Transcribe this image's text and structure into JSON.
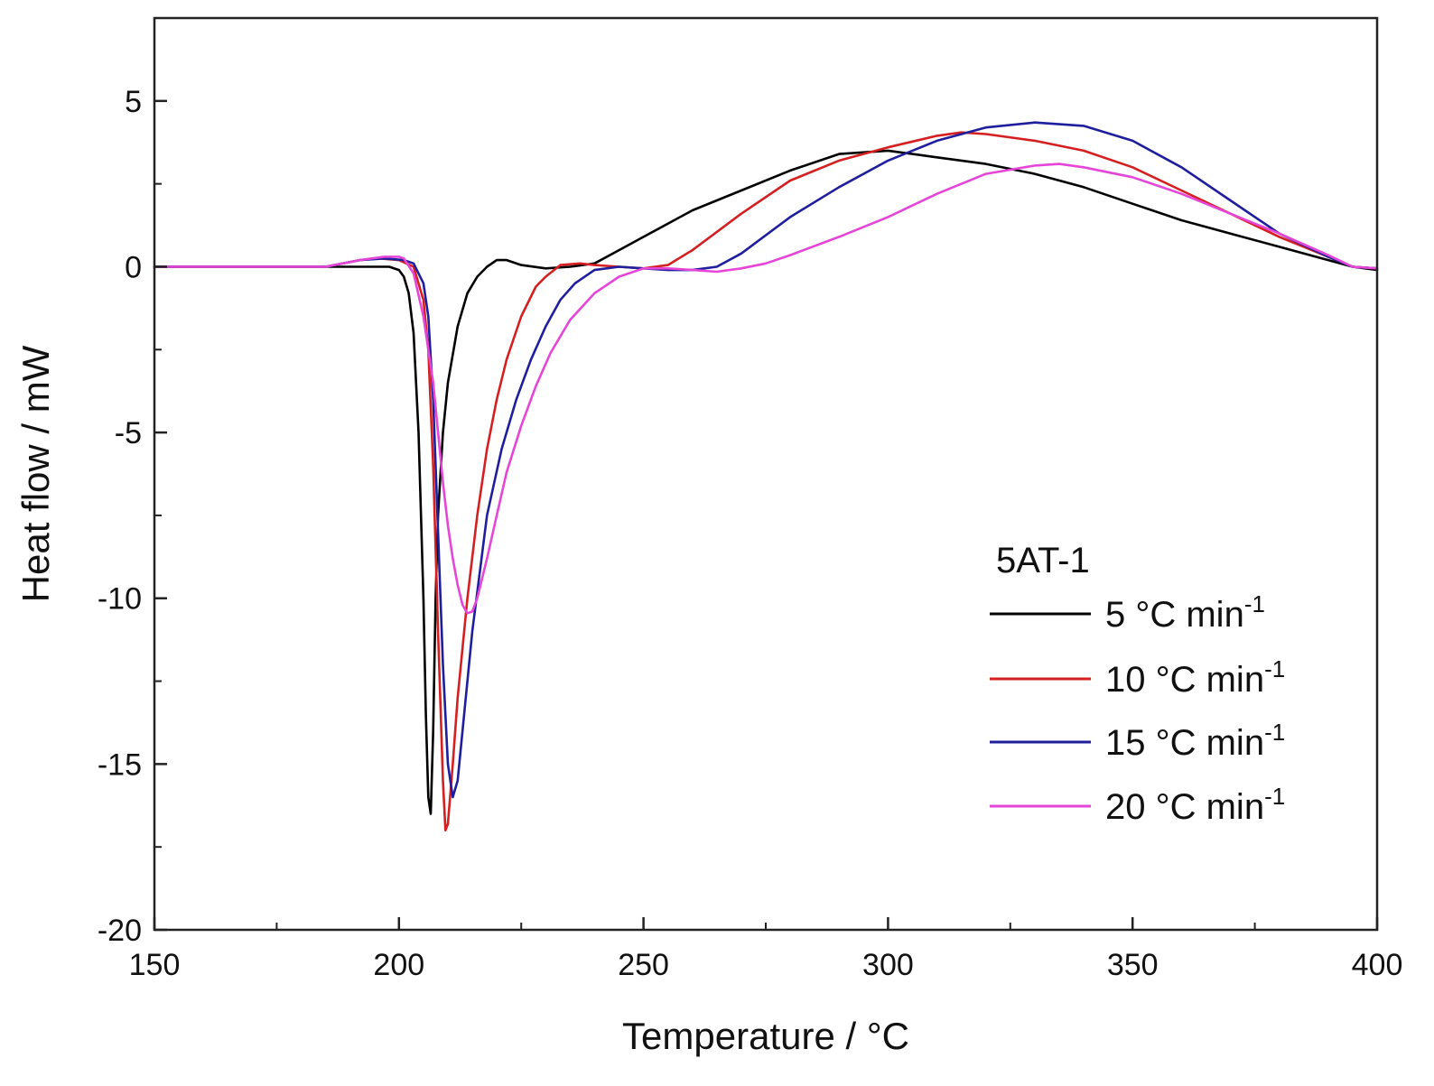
{
  "chart_data": {
    "type": "line",
    "title": "",
    "xlabel": "Temperature / °C",
    "ylabel": "Heat flow / mW",
    "xlim": [
      150,
      400
    ],
    "ylim": [
      -20,
      7.5
    ],
    "xticks": [
      150,
      200,
      250,
      300,
      350,
      400
    ],
    "yticks": [
      -20,
      -15,
      -10,
      -5,
      0,
      5
    ],
    "grid": false,
    "legend": {
      "title": "5AT-1",
      "position": "lower-right"
    },
    "series": [
      {
        "name": "5 °C min-1",
        "rate": "5",
        "unit": "°C min",
        "exp": "-1",
        "color": "#000000",
        "x": [
          150,
          180,
          190,
          195,
          198,
          200,
          201,
          202,
          203,
          204,
          205,
          205.5,
          206,
          206.5,
          207,
          207.5,
          208,
          209,
          210,
          212,
          214,
          216,
          218,
          220,
          222,
          225,
          230,
          235,
          240,
          245,
          250,
          260,
          270,
          280,
          290,
          300,
          310,
          320,
          330,
          340,
          350,
          360,
          370,
          380,
          390,
          395,
          400
        ],
        "y": [
          0,
          0,
          0,
          0,
          0,
          -0.1,
          -0.3,
          -0.8,
          -2.0,
          -5.0,
          -10.0,
          -13.5,
          -16.0,
          -16.5,
          -14.0,
          -10.0,
          -7.5,
          -5.0,
          -3.5,
          -1.8,
          -0.8,
          -0.3,
          0.0,
          0.2,
          0.2,
          0.05,
          -0.05,
          0.0,
          0.1,
          0.5,
          0.9,
          1.7,
          2.3,
          2.9,
          3.4,
          3.5,
          3.3,
          3.1,
          2.8,
          2.4,
          1.9,
          1.4,
          1.0,
          0.6,
          0.2,
          0.0,
          -0.1
        ]
      },
      {
        "name": "10 °C min-1",
        "rate": "10",
        "unit": "°C min",
        "exp": "-1",
        "color": "#d42020",
        "x": [
          150,
          185,
          192,
          196,
          200,
          203,
          205,
          206,
          207,
          208,
          209,
          209.5,
          210,
          211,
          212,
          214,
          216,
          218,
          220,
          222,
          225,
          228,
          230,
          233,
          237,
          240,
          245,
          250,
          255,
          260,
          270,
          280,
          290,
          300,
          310,
          315,
          320,
          330,
          340,
          350,
          360,
          370,
          380,
          390,
          395,
          400
        ],
        "y": [
          0,
          0,
          0.2,
          0.25,
          0.2,
          0.0,
          -1.0,
          -2.5,
          -6.0,
          -11.0,
          -15.5,
          -17.0,
          -16.8,
          -15.0,
          -13.0,
          -10.0,
          -7.5,
          -5.5,
          -4.0,
          -2.8,
          -1.5,
          -0.6,
          -0.3,
          0.05,
          0.1,
          0.05,
          0.0,
          -0.05,
          0.05,
          0.5,
          1.6,
          2.6,
          3.2,
          3.6,
          3.95,
          4.05,
          4.0,
          3.8,
          3.5,
          3.0,
          2.3,
          1.6,
          0.9,
          0.3,
          0.0,
          -0.05
        ]
      },
      {
        "name": "15 °C min-1",
        "rate": "15",
        "unit": "°C min",
        "exp": "-1",
        "color": "#1f1f9e",
        "x": [
          150,
          185,
          192,
          197,
          201,
          203,
          205,
          206,
          207,
          208,
          209,
          210,
          211,
          212,
          213,
          215,
          218,
          221,
          224,
          227,
          230,
          233,
          236,
          240,
          245,
          250,
          255,
          260,
          265,
          270,
          280,
          290,
          300,
          310,
          320,
          330,
          340,
          350,
          360,
          370,
          380,
          390,
          395,
          400
        ],
        "y": [
          0,
          0,
          0.2,
          0.25,
          0.2,
          0.1,
          -0.5,
          -1.5,
          -4.0,
          -8.0,
          -12.0,
          -15.0,
          -16.0,
          -15.5,
          -14.0,
          -11.0,
          -7.5,
          -5.5,
          -4.0,
          -2.8,
          -1.8,
          -1.0,
          -0.5,
          -0.1,
          0.0,
          -0.05,
          -0.1,
          -0.1,
          0.0,
          0.4,
          1.5,
          2.4,
          3.2,
          3.8,
          4.2,
          4.35,
          4.25,
          3.8,
          3.0,
          2.0,
          1.0,
          0.3,
          0.0,
          -0.05
        ]
      },
      {
        "name": "20 °C min-1",
        "rate": "20",
        "unit": "°C min",
        "exp": "-1",
        "color": "#e646d8",
        "x": [
          150,
          185,
          192,
          197,
          200,
          201,
          203,
          205,
          207,
          208,
          209,
          210,
          211,
          212,
          213,
          214,
          215,
          216,
          218,
          220,
          222,
          225,
          228,
          231,
          235,
          240,
          245,
          250,
          255,
          260,
          265,
          270,
          275,
          280,
          290,
          300,
          310,
          320,
          330,
          335,
          340,
          350,
          360,
          370,
          380,
          390,
          395,
          400
        ],
        "y": [
          0,
          0,
          0.2,
          0.3,
          0.3,
          0.25,
          -0.2,
          -1.5,
          -3.5,
          -5.0,
          -6.5,
          -7.8,
          -8.8,
          -9.6,
          -10.2,
          -10.45,
          -10.4,
          -10.0,
          -8.8,
          -7.5,
          -6.2,
          -4.8,
          -3.6,
          -2.6,
          -1.6,
          -0.8,
          -0.3,
          -0.05,
          -0.05,
          -0.1,
          -0.15,
          -0.05,
          0.1,
          0.35,
          0.9,
          1.5,
          2.2,
          2.8,
          3.05,
          3.1,
          3.0,
          2.7,
          2.2,
          1.6,
          1.0,
          0.35,
          0.0,
          -0.05
        ]
      }
    ]
  }
}
